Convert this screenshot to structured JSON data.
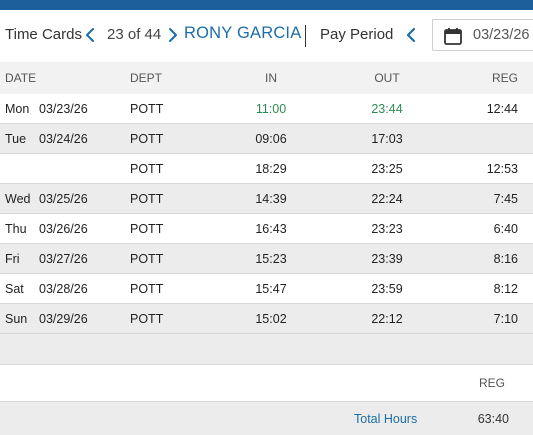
{
  "header": {
    "title": "Time Cards",
    "record_count": "23 of 44",
    "employee_name": "RONY GARCIA",
    "pay_period_label": "Pay Period",
    "pay_period_date": "03/23/26"
  },
  "columns": {
    "date": "DATE",
    "dept": "DEPT",
    "in": "IN",
    "out": "OUT",
    "reg": "REG"
  },
  "rows": [
    {
      "day": "Mon",
      "date": "03/23/26",
      "dept": "POTT",
      "in": "11:00",
      "out": "23:44",
      "reg": "12:44",
      "highlight": true
    },
    {
      "day": "Tue",
      "date": "03/24/26",
      "dept": "POTT",
      "in": "09:06",
      "out": "17:03",
      "reg": ""
    },
    {
      "day": "",
      "date": "",
      "dept": "POTT",
      "in": "18:29",
      "out": "23:25",
      "reg": "12:53"
    },
    {
      "day": "Wed",
      "date": "03/25/26",
      "dept": "POTT",
      "in": "14:39",
      "out": "22:24",
      "reg": "7:45"
    },
    {
      "day": "Thu",
      "date": "03/26/26",
      "dept": "POTT",
      "in": "16:43",
      "out": "23:23",
      "reg": "6:40"
    },
    {
      "day": "Fri",
      "date": "03/27/26",
      "dept": "POTT",
      "in": "15:23",
      "out": "23:39",
      "reg": "8:16"
    },
    {
      "day": "Sat",
      "date": "03/28/26",
      "dept": "POTT",
      "in": "15:47",
      "out": "23:59",
      "reg": "8:12"
    },
    {
      "day": "Sun",
      "date": "03/29/26",
      "dept": "POTT",
      "in": "15:02",
      "out": "22:12",
      "reg": "7:10"
    }
  ],
  "summary": {
    "reg_label": "REG",
    "total_label": "Total Hours",
    "total_value": "63:40"
  },
  "colors": {
    "brand": "#1c5f9b",
    "link": "#1c6ea4",
    "highlight_time": "#2e8b57"
  },
  "icons": {
    "prev": "chevron-left-icon",
    "next": "chevron-right-icon",
    "calendar": "calendar-icon"
  }
}
